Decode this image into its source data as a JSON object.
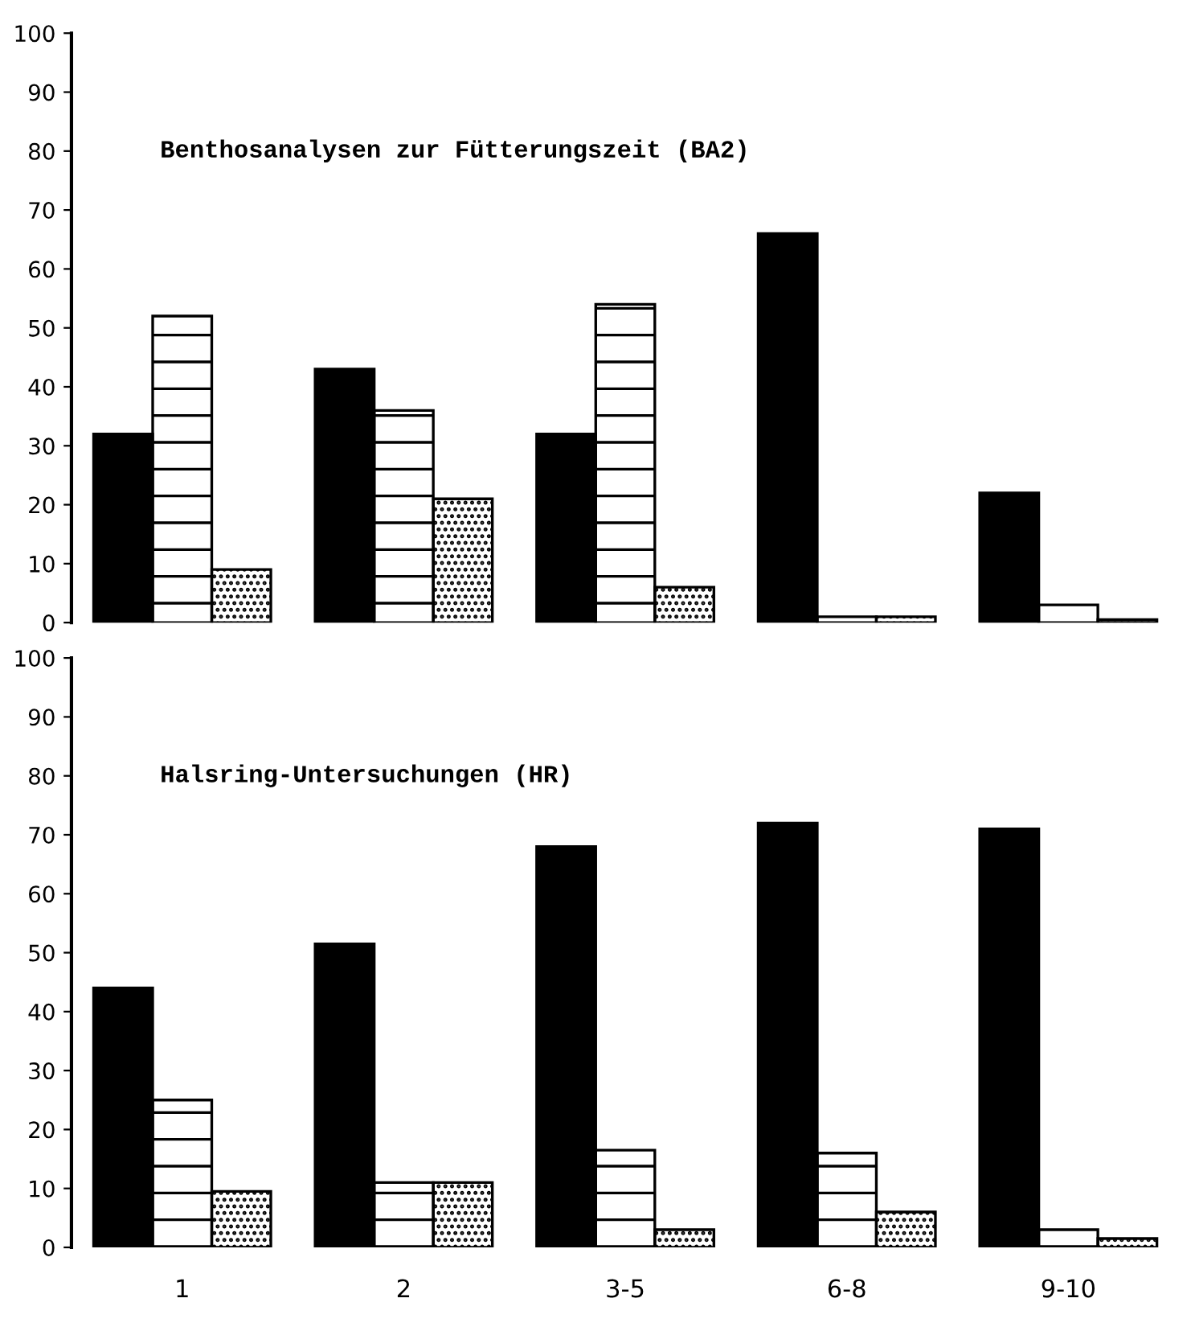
{
  "chart_data": [
    {
      "type": "bar",
      "title": "Benthosanalysen zur Fütterungszeit (BA2)",
      "categories": [
        null,
        null,
        null,
        null,
        null
      ],
      "series": [
        {
          "color": "#000000",
          "values": [
            32,
            43,
            32,
            66,
            22
          ]
        },
        {
          "color": "#000000",
          "values": [
            52,
            36,
            54,
            1,
            3
          ]
        },
        {
          "color": "#000000",
          "values": [
            9,
            21,
            6,
            1,
            0.5
          ]
        }
      ],
      "ylim": [
        0,
        100
      ],
      "yticks": [
        0,
        10,
        20,
        30,
        40,
        50,
        60,
        70,
        80,
        90,
        100
      ],
      "tick_labels": "y",
      "grid": false,
      "legend": false
    },
    {
      "type": "bar",
      "title": "Halsring-Untersuchungen (HR)",
      "categories": [
        "1",
        "2",
        "3-5",
        "6-8",
        "9-10"
      ],
      "series": [
        {
          "color": "#000000",
          "values": [
            44,
            51.5,
            68,
            72,
            71
          ]
        },
        {
          "color": "#000000",
          "values": [
            25,
            11,
            16.5,
            16,
            3
          ]
        },
        {
          "color": "#000000",
          "values": [
            9.5,
            11,
            3,
            6,
            1.5
          ]
        }
      ],
      "ylim": [
        0,
        100
      ],
      "yticks": [
        0,
        10,
        20,
        30,
        40,
        50,
        60,
        70,
        80,
        90,
        100
      ],
      "grid": false,
      "legend": false
    }
  ]
}
